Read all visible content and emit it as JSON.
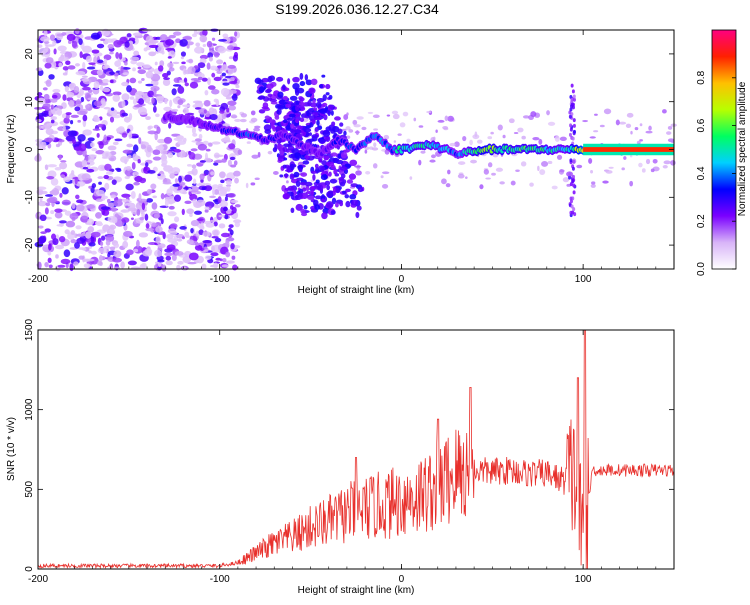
{
  "title": "S199.2026.036.12.27.C34",
  "chart_data": [
    {
      "type": "heatmap",
      "name": "spectrogram",
      "xlabel": "Height of straight line (km)",
      "ylabel": "Frequency (Hz)",
      "xlim": [
        -200,
        150
      ],
      "ylim": [
        -25,
        25
      ],
      "xticks": [
        "-200",
        "-100",
        "0",
        "100"
      ],
      "yticks": [
        "20",
        "10",
        "0",
        "-10",
        "-20"
      ],
      "colorbar": {
        "label": "Normalized spectral amplitude",
        "ticks": [
          "0.0",
          "0.2",
          "0.4",
          "0.6",
          "0.8"
        ],
        "range": [
          0,
          1
        ],
        "colors": [
          "#ffffff",
          "#d8b4f8",
          "#7a00ff",
          "#0000ff",
          "#00d0ff",
          "#00ff60",
          "#b8ff00",
          "#ffc000",
          "#ff2000",
          "#ff0080"
        ]
      },
      "ridge": [
        {
          "x": -130,
          "f": 7,
          "amp": 0.25
        },
        {
          "x": -115,
          "f": 6,
          "amp": 0.25
        },
        {
          "x": -95,
          "f": 4,
          "amp": 0.35
        },
        {
          "x": -85,
          "f": 3,
          "amp": 0.4
        },
        {
          "x": -75,
          "f": 2,
          "amp": 0.35
        },
        {
          "x": -65,
          "f": 3,
          "amp": 0.3
        },
        {
          "x": -55,
          "f": 1,
          "amp": 0.3
        },
        {
          "x": -45,
          "f": -1,
          "amp": 0.25
        },
        {
          "x": -35,
          "f": 2,
          "amp": 0.35
        },
        {
          "x": -25,
          "f": 0,
          "amp": 0.4
        },
        {
          "x": -15,
          "f": 3,
          "amp": 0.45
        },
        {
          "x": -5,
          "f": 0,
          "amp": 0.45
        },
        {
          "x": 0,
          "f": 0,
          "amp": 0.6
        },
        {
          "x": 15,
          "f": 1,
          "amp": 0.55
        },
        {
          "x": 25,
          "f": 0,
          "amp": 0.5
        },
        {
          "x": 30,
          "f": -1,
          "amp": 0.4
        },
        {
          "x": 45,
          "f": 0,
          "amp": 0.7
        },
        {
          "x": 60,
          "f": 0,
          "amp": 0.6
        },
        {
          "x": 75,
          "f": 0,
          "amp": 0.6
        },
        {
          "x": 90,
          "f": 0,
          "amp": 0.5
        },
        {
          "x": 100,
          "f": 0,
          "amp": 0.85
        },
        {
          "x": 120,
          "f": 0,
          "amp": 0.9
        },
        {
          "x": 150,
          "f": 0,
          "amp": 0.85
        }
      ]
    },
    {
      "type": "line",
      "name": "snr",
      "color": "#e8302c",
      "xlabel": "Height of straight line (km)",
      "ylabel": "SNR (10 * v/v)",
      "xlim": [
        -200,
        150
      ],
      "ylim": [
        0,
        1500
      ],
      "xticks": [
        "-200",
        "-100",
        "0",
        "100"
      ],
      "yticks": [
        "0",
        "500",
        "1000",
        "1500"
      ],
      "series": [
        {
          "name": "SNR",
          "x": [
            -200,
            -150,
            -100,
            -90,
            -80,
            -70,
            -60,
            -50,
            -40,
            -30,
            -20,
            -10,
            0,
            10,
            20,
            30,
            40,
            50,
            60,
            70,
            80,
            90,
            95,
            100,
            105,
            110,
            120,
            130,
            140,
            150
          ],
          "y": [
            20,
            20,
            20,
            40,
            100,
            160,
            200,
            260,
            300,
            350,
            380,
            400,
            430,
            460,
            520,
            600,
            620,
            610,
            620,
            600,
            600,
            550,
            600,
            150,
            620,
            620,
            620,
            620,
            620,
            620
          ],
          "peaks": [
            {
              "x": -25,
              "y": 700
            },
            {
              "x": 20,
              "y": 940
            },
            {
              "x": 38,
              "y": 1140
            },
            {
              "x": 97,
              "y": 1200
            },
            {
              "x": 101,
              "y": 1500
            }
          ]
        }
      ]
    }
  ]
}
